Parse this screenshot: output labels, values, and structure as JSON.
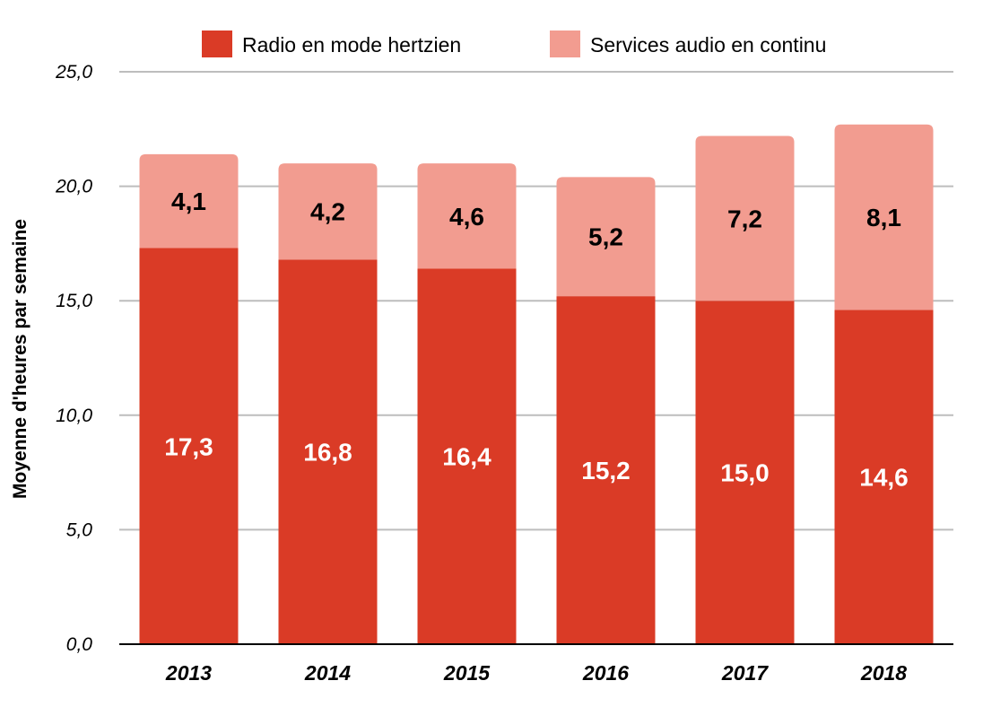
{
  "chart_data": {
    "type": "bar",
    "stacked": true,
    "categories": [
      "2013",
      "2014",
      "2015",
      "2016",
      "2017",
      "2018"
    ],
    "series": [
      {
        "name": "Radio en mode hertzien",
        "color": "#DA3B26",
        "label_color": "#FFFFFF",
        "values": [
          17.3,
          16.8,
          16.4,
          15.2,
          15.0,
          14.6
        ],
        "labels": [
          "17,3",
          "16,8",
          "16,4",
          "15,2",
          "15,0",
          "14,6"
        ]
      },
      {
        "name": "Services audio en continu",
        "color": "#F29C90",
        "label_color": "#000000",
        "values": [
          4.1,
          4.2,
          4.6,
          5.2,
          7.2,
          8.1
        ],
        "labels": [
          "4,1",
          "4,2",
          "4,6",
          "5,2",
          "7,2",
          "8,1"
        ]
      }
    ],
    "title": "",
    "xlabel": "",
    "ylabel": "Moyenne d'heures par semaine",
    "ylim": [
      0,
      25
    ],
    "yticks": [
      0,
      5,
      10,
      15,
      20,
      25
    ],
    "ytick_labels": [
      "0,0",
      "5,0",
      "10,0",
      "15,0",
      "20,0",
      "25,0"
    ],
    "grid": true,
    "legend_position": "top"
  }
}
